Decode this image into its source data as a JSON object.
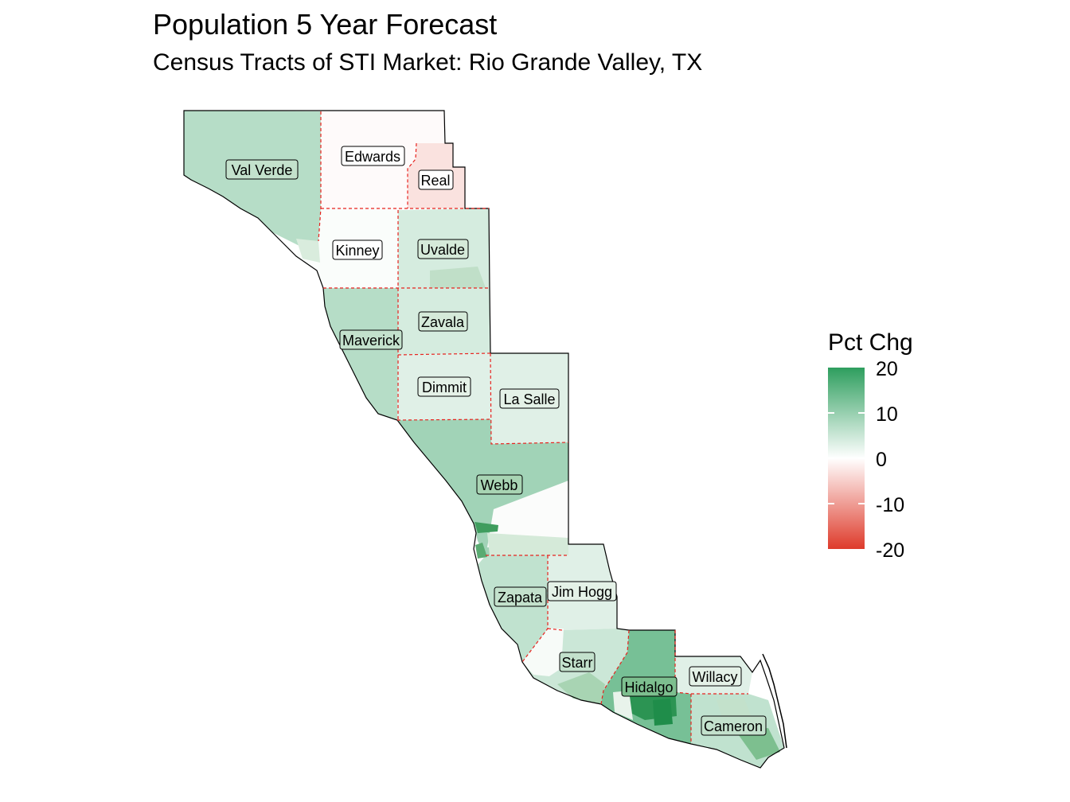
{
  "title": "Population 5 Year Forecast",
  "subtitle": "Census Tracts of STI Market: Rio Grande Valley, TX",
  "legend": {
    "title": "Pct Chg",
    "ticks": [
      "20",
      "10",
      "0",
      "-10",
      "-20"
    ],
    "scale": {
      "min": -20,
      "max": 20,
      "low_color": "#de3b2b",
      "mid_color": "#ffffff",
      "high_color": "#2e9e5e"
    }
  },
  "counties": [
    {
      "name": "Val Verde",
      "pct_chg": 7
    },
    {
      "name": "Edwards",
      "pct_chg": -0.5
    },
    {
      "name": "Real",
      "pct_chg": -3
    },
    {
      "name": "Kinney",
      "pct_chg": 0.5
    },
    {
      "name": "Uvalde",
      "pct_chg": 4
    },
    {
      "name": "Maverick",
      "pct_chg": 7
    },
    {
      "name": "Zavala",
      "pct_chg": 4
    },
    {
      "name": "Dimmit",
      "pct_chg": 3
    },
    {
      "name": "La Salle",
      "pct_chg": 3
    },
    {
      "name": "Webb",
      "pct_chg": 9
    },
    {
      "name": "Zapata",
      "pct_chg": 6
    },
    {
      "name": "Jim Hogg",
      "pct_chg": 3
    },
    {
      "name": "Starr",
      "pct_chg": 5
    },
    {
      "name": "Hidalgo",
      "pct_chg": 13
    },
    {
      "name": "Willacy",
      "pct_chg": 3
    },
    {
      "name": "Cameron",
      "pct_chg": 6
    }
  ],
  "colors": {
    "boundary_dashed": "#e8231f",
    "outline": "#000000"
  }
}
